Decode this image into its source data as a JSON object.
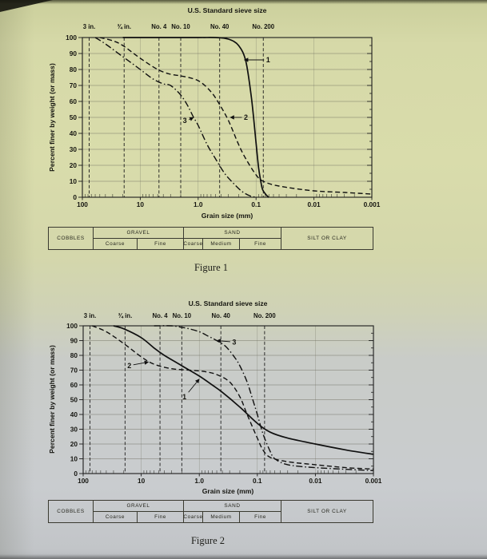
{
  "captions": {
    "figure1": "Figure 1",
    "figure2": "Figure 2"
  },
  "classification_table": {
    "cobbles": "COBBLES",
    "gravel": "GRAVEL",
    "sand": "SAND",
    "silt": "SILT OR CLAY",
    "gravel_sub": [
      "Coarse",
      "Fine"
    ],
    "sand_sub": [
      "Coarse",
      "Medium",
      "Fine"
    ]
  },
  "chart_data": [
    {
      "type": "line",
      "title": "U.S. Standard sieve size",
      "xlabel": "Grain size (mm)",
      "ylabel": "Percent finer by weight (or mass)",
      "x_scale": "log",
      "x_range": [
        100,
        0.001
      ],
      "y_range": [
        0,
        100
      ],
      "x_ticks": [
        "100",
        "10",
        "1.0",
        "0.1",
        "0.01",
        "0.001"
      ],
      "y_ticks": [
        100,
        90,
        80,
        70,
        60,
        50,
        40,
        30,
        20,
        10,
        0
      ],
      "sieve_lines": [
        {
          "label": "3 in.",
          "d": 76.2
        },
        {
          "label": "¾ in.",
          "d": 19
        },
        {
          "label": "No. 4",
          "d": 4.75
        },
        {
          "label": "No. 10",
          "d": 2
        },
        {
          "label": "No. 40",
          "d": 0.425
        },
        {
          "label": "No. 200",
          "d": 0.075
        }
      ],
      "series": [
        {
          "name": "1",
          "style": "solid",
          "points": [
            [
              20,
              100
            ],
            [
              5,
              100
            ],
            [
              1,
              100
            ],
            [
              0.5,
              100
            ],
            [
              0.3,
              99
            ],
            [
              0.2,
              95
            ],
            [
              0.15,
              85
            ],
            [
              0.12,
              62
            ],
            [
              0.1,
              34
            ],
            [
              0.09,
              18
            ],
            [
              0.08,
              7
            ],
            [
              0.075,
              4
            ],
            [
              0.065,
              1
            ],
            [
              0.06,
              0
            ]
          ]
        },
        {
          "name": "2",
          "style": "dashed",
          "points": [
            [
              50,
              100
            ],
            [
              30,
              98
            ],
            [
              20,
              95
            ],
            [
              10,
              87
            ],
            [
              5,
              80
            ],
            [
              3,
              77
            ],
            [
              2,
              76
            ],
            [
              1,
              73
            ],
            [
              0.6,
              66
            ],
            [
              0.425,
              58
            ],
            [
              0.3,
              48
            ],
            [
              0.2,
              33
            ],
            [
              0.15,
              24
            ],
            [
              0.1,
              14
            ],
            [
              0.075,
              10
            ],
            [
              0.04,
              7
            ],
            [
              0.01,
              4
            ],
            [
              0.003,
              3
            ],
            [
              0.001,
              2
            ]
          ]
        },
        {
          "name": "3",
          "style": "dashdot",
          "points": [
            [
              60,
              100
            ],
            [
              40,
              96
            ],
            [
              20,
              88
            ],
            [
              10,
              80
            ],
            [
              6,
              74
            ],
            [
              4,
              71
            ],
            [
              3,
              70
            ],
            [
              2,
              64
            ],
            [
              1.5,
              57
            ],
            [
              1.2,
              50
            ],
            [
              1,
              45
            ],
            [
              0.7,
              33
            ],
            [
              0.5,
              24
            ],
            [
              0.35,
              15
            ],
            [
              0.25,
              9
            ],
            [
              0.18,
              4
            ],
            [
              0.13,
              1
            ],
            [
              0.1,
              0
            ]
          ]
        }
      ],
      "annotations": [
        {
          "text": "1",
          "at": [
            0.062,
            86
          ],
          "target": [
            0.16,
            86
          ]
        },
        {
          "text": "2",
          "at": [
            0.15,
            50
          ],
          "target": [
            0.28,
            50
          ]
        },
        {
          "text": "3",
          "at": [
            1.7,
            48
          ],
          "target": [
            1.2,
            50
          ]
        }
      ]
    },
    {
      "type": "line",
      "title": "U.S. Standard sieve size",
      "xlabel": "Grain size (mm)",
      "ylabel": "Percent finer by weight (or mass)",
      "x_scale": "log",
      "x_range": [
        100,
        0.001
      ],
      "y_range": [
        0,
        100
      ],
      "x_ticks": [
        "100",
        "10",
        "1.0",
        "0.1",
        "0.01",
        "0.001"
      ],
      "y_ticks": [
        100,
        90,
        80,
        70,
        60,
        50,
        40,
        30,
        20,
        10,
        0
      ],
      "sieve_lines": [
        {
          "label": "3 in.",
          "d": 76.2
        },
        {
          "label": "¾ in.",
          "d": 19
        },
        {
          "label": "No. 4",
          "d": 4.75
        },
        {
          "label": "No. 10",
          "d": 2
        },
        {
          "label": "No. 40",
          "d": 0.425
        },
        {
          "label": "No. 200",
          "d": 0.075
        }
      ],
      "series": [
        {
          "name": "1",
          "style": "solid",
          "points": [
            [
              30,
              100
            ],
            [
              20,
              98
            ],
            [
              10,
              92
            ],
            [
              6,
              85
            ],
            [
              4,
              80
            ],
            [
              2,
              73
            ],
            [
              1,
              66
            ],
            [
              0.6,
              60
            ],
            [
              0.4,
              55
            ],
            [
              0.2,
              45
            ],
            [
              0.1,
              34
            ],
            [
              0.06,
              28
            ],
            [
              0.03,
              24
            ],
            [
              0.01,
              20
            ],
            [
              0.003,
              16
            ],
            [
              0.001,
              13
            ]
          ]
        },
        {
          "name": "2",
          "style": "dashed",
          "points": [
            [
              70,
              100
            ],
            [
              40,
              96
            ],
            [
              20,
              88
            ],
            [
              10,
              79
            ],
            [
              6,
              74
            ],
            [
              3,
              71
            ],
            [
              1.5,
              70
            ],
            [
              0.8,
              69
            ],
            [
              0.5,
              67
            ],
            [
              0.3,
              62
            ],
            [
              0.2,
              52
            ],
            [
              0.15,
              40
            ],
            [
              0.1,
              24
            ],
            [
              0.08,
              16
            ],
            [
              0.06,
              11
            ],
            [
              0.03,
              8
            ],
            [
              0.01,
              6
            ],
            [
              0.003,
              4
            ],
            [
              0.001,
              3
            ]
          ]
        },
        {
          "name": "3",
          "style": "dashdot",
          "points": [
            [
              6,
              100
            ],
            [
              3,
              100
            ],
            [
              2,
              99
            ],
            [
              1.5,
              98
            ],
            [
              1,
              96
            ],
            [
              0.7,
              93
            ],
            [
              0.5,
              90
            ],
            [
              0.35,
              86
            ],
            [
              0.25,
              79
            ],
            [
              0.2,
              73
            ],
            [
              0.15,
              62
            ],
            [
              0.12,
              50
            ],
            [
              0.1,
              40
            ],
            [
              0.08,
              27
            ],
            [
              0.06,
              15
            ],
            [
              0.05,
              10
            ],
            [
              0.03,
              6
            ],
            [
              0.01,
              4
            ],
            [
              0.001,
              2
            ]
          ]
        }
      ],
      "annotations": [
        {
          "text": "2",
          "at": [
            16,
            73
          ],
          "target": [
            7.5,
            75.5
          ]
        },
        {
          "text": "1",
          "at": [
            1.8,
            52
          ],
          "target": [
            1.0,
            64
          ]
        },
        {
          "text": "3",
          "at": [
            0.25,
            89
          ],
          "target": [
            0.5,
            90
          ]
        }
      ]
    }
  ]
}
